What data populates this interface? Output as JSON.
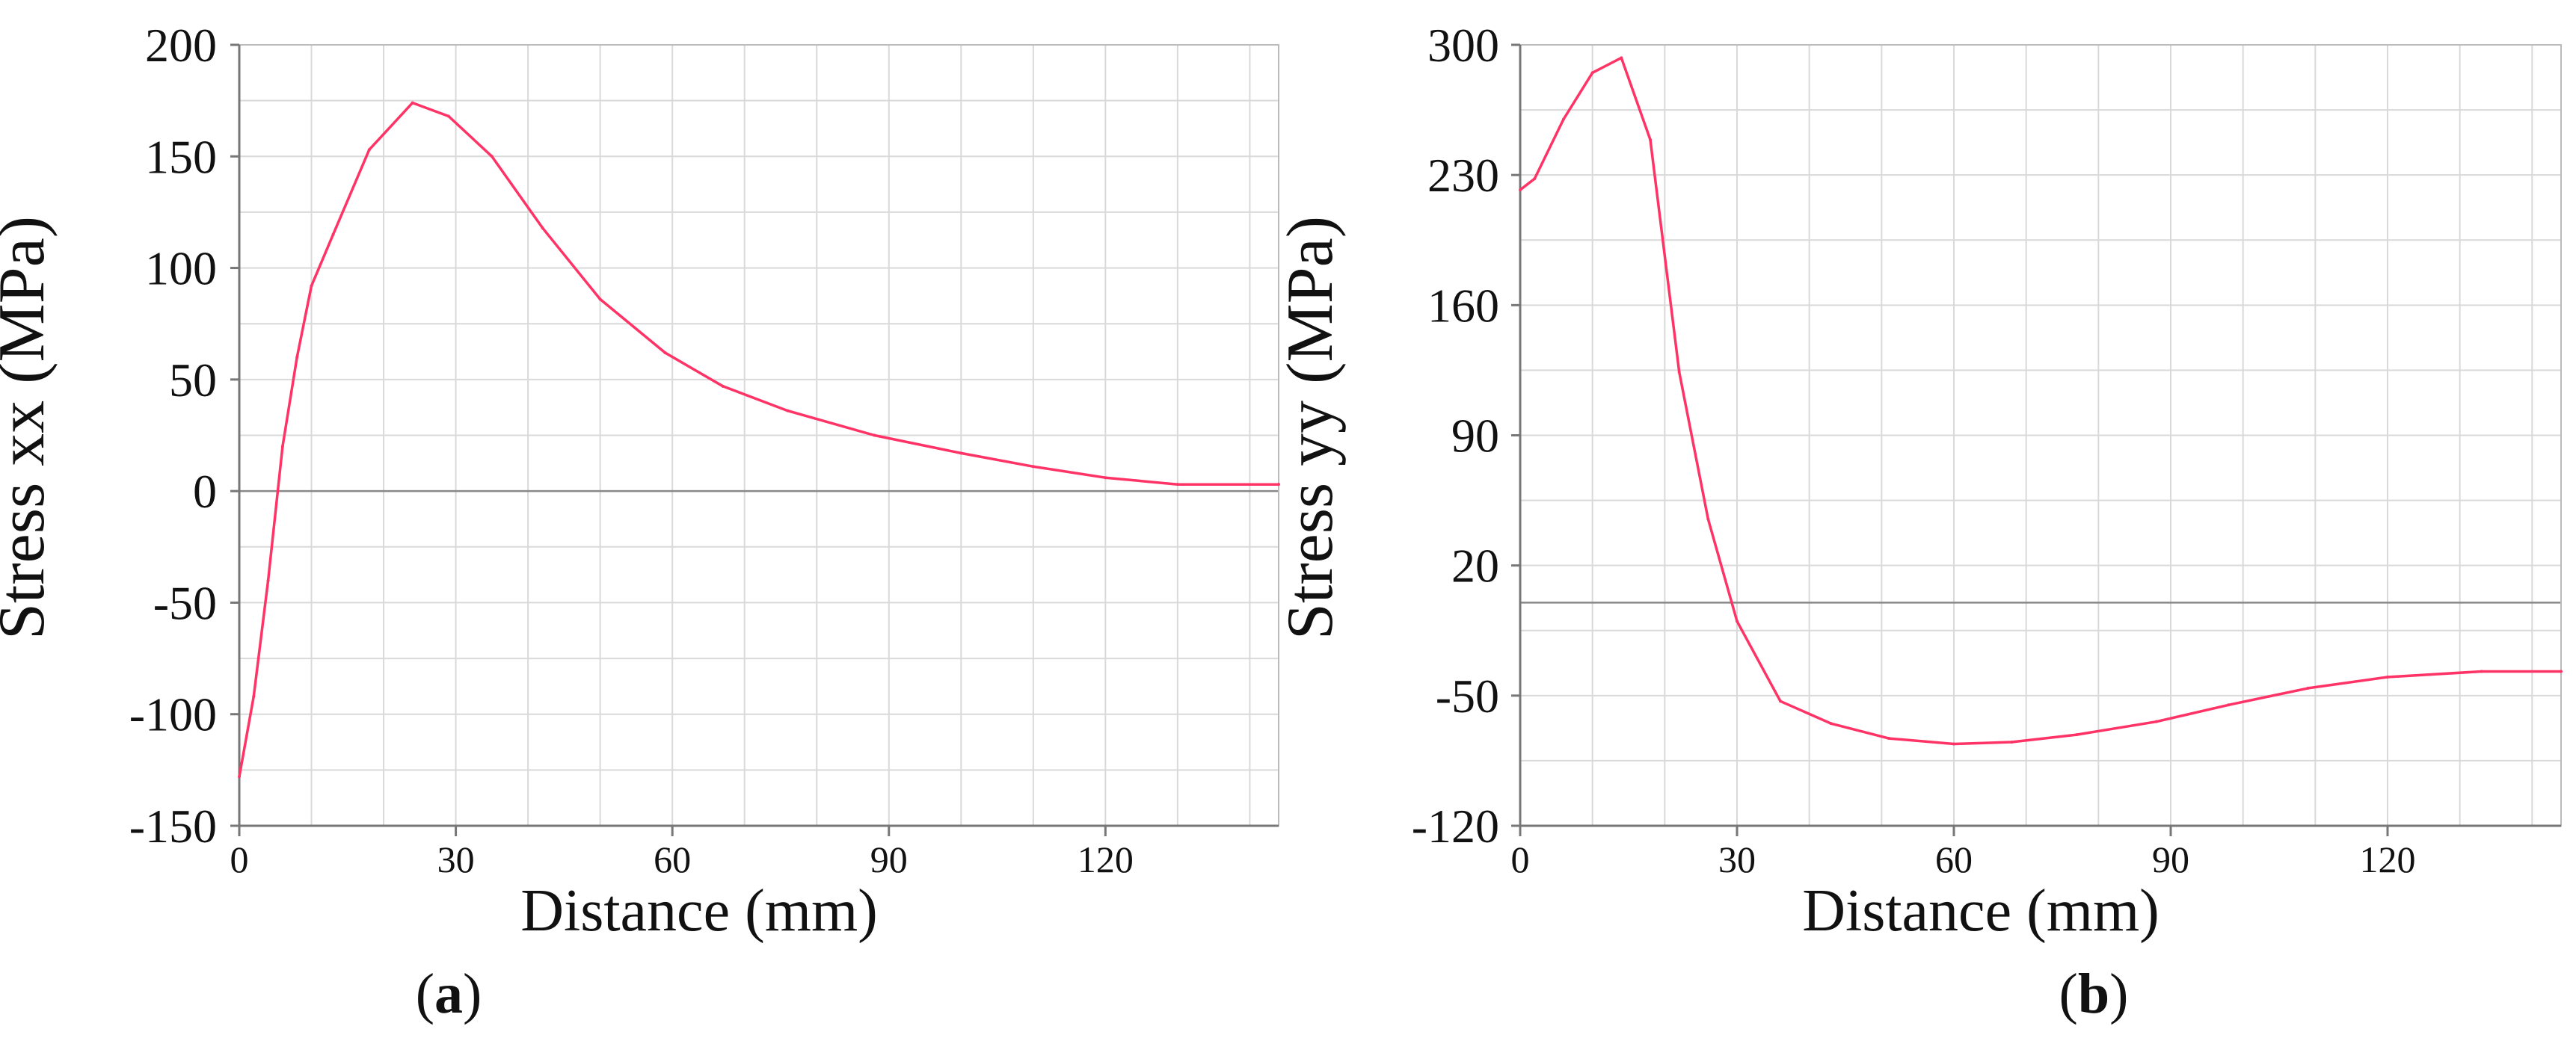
{
  "colors": {
    "line": "#ff3366",
    "grid": "#d9d9d9",
    "axis": "#777777",
    "zero_line": "#888888",
    "text": "#111111"
  },
  "chart_data": [
    {
      "type": "line",
      "panel_label": "a",
      "xlabel": "Distance (mm)",
      "ylabel": "Stress xx  (MPa)",
      "xlim": [
        0,
        144
      ],
      "ylim": [
        -150,
        200
      ],
      "x_ticks": [
        0,
        30,
        60,
        90,
        120
      ],
      "y_ticks": [
        200,
        150,
        100,
        50,
        0,
        -50,
        -100,
        -150
      ],
      "grid": true,
      "x_minor_step": 10,
      "y_minor_step": 25,
      "zero_line": 0,
      "series": [
        {
          "x": [
            0,
            2,
            4,
            6,
            8,
            10,
            13,
            18,
            24,
            29,
            35,
            42,
            50,
            59,
            67,
            76,
            88,
            100,
            110,
            120,
            130,
            144
          ],
          "y": [
            -128,
            -92,
            -40,
            20,
            60,
            92,
            115,
            153,
            174,
            168,
            150,
            118,
            86,
            62,
            47,
            36,
            25,
            17,
            11,
            6,
            3,
            3
          ]
        }
      ]
    },
    {
      "type": "line",
      "panel_label": "b",
      "xlabel": "Distance (mm)",
      "ylabel": "Stress yy  (MPa)",
      "xlim": [
        0,
        144
      ],
      "ylim": [
        -120,
        300
      ],
      "x_ticks": [
        0,
        30,
        60,
        90,
        120
      ],
      "y_ticks": [
        300,
        230,
        160,
        90,
        20,
        -50,
        -120
      ],
      "grid": true,
      "x_minor_step": 10,
      "y_minor_step": 35,
      "zero_line": 0,
      "series": [
        {
          "x": [
            0,
            2,
            6,
            10,
            14,
            18,
            22,
            26,
            30,
            36,
            43,
            51,
            60,
            68,
            77,
            88,
            98,
            109,
            120,
            133,
            144
          ],
          "y": [
            222,
            228,
            260,
            285,
            293,
            249,
            124,
            45,
            -10,
            -53,
            -65,
            -73,
            -76,
            -75,
            -71,
            -64,
            -55,
            -46,
            -40,
            -37,
            -37
          ]
        }
      ]
    }
  ]
}
